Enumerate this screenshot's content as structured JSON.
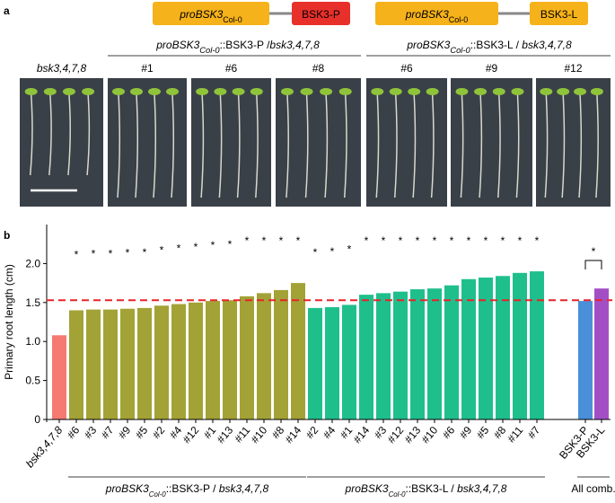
{
  "panel_a": {
    "label": "a",
    "constructs": [
      {
        "promoter": "proBSK3",
        "promoter_sub": "Col-0",
        "gene": "BSK3-P"
      },
      {
        "promoter": "proBSK3",
        "promoter_sub": "Col-0",
        "gene": "BSK3-L"
      }
    ],
    "line_groups": [
      {
        "parts": [
          "proBSK3",
          "Col-0",
          "::BSK3-P /",
          "bsk3,4,7,8"
        ]
      },
      {
        "parts": [
          "proBSK3",
          "Col-0",
          "::BSK3-L / ",
          "bsk3,4,7,8"
        ]
      }
    ],
    "photos": [
      "bsk3,4,7,8",
      "#1",
      "#6",
      "#8",
      "#6",
      "#9",
      "#12"
    ]
  },
  "chart_data": {
    "type": "bar",
    "panel_label": "b",
    "ylabel": "Primary root length (cm)",
    "categories": [
      "bsk3,4,7,8",
      "#6",
      "#3",
      "#7",
      "#9",
      "#5",
      "#2",
      "#4",
      "#12",
      "#1",
      "#13",
      "#11",
      "#10",
      "#8",
      "#14",
      "#2",
      "#4",
      "#1",
      "#14",
      "#3",
      "#12",
      "#13",
      "#10",
      "#6",
      "#9",
      "#5",
      "#8",
      "#11",
      "#7",
      "BSK3-P",
      "BSK3-L"
    ],
    "values": [
      1.08,
      1.4,
      1.41,
      1.41,
      1.42,
      1.43,
      1.46,
      1.48,
      1.5,
      1.52,
      1.53,
      1.58,
      1.62,
      1.66,
      1.75,
      1.43,
      1.44,
      1.47,
      1.6,
      1.62,
      1.64,
      1.67,
      1.68,
      1.72,
      1.8,
      1.82,
      1.84,
      1.88,
      1.9,
      1.52,
      1.68
    ],
    "colors": [
      "#f47a72",
      "#a3a236",
      "#a3a236",
      "#a3a236",
      "#a3a236",
      "#a3a236",
      "#a3a236",
      "#a3a236",
      "#a3a236",
      "#a3a236",
      "#a3a236",
      "#a3a236",
      "#a3a236",
      "#a3a236",
      "#a3a236",
      "#1fbf8c",
      "#1fbf8c",
      "#1fbf8c",
      "#1fbf8c",
      "#1fbf8c",
      "#1fbf8c",
      "#1fbf8c",
      "#1fbf8c",
      "#1fbf8c",
      "#1fbf8c",
      "#1fbf8c",
      "#1fbf8c",
      "#1fbf8c",
      "#1fbf8c",
      "#4a8fd8",
      "#a24fc6"
    ],
    "significance_marks": [
      null,
      "*",
      "*",
      "*",
      "*",
      "*",
      "*",
      "*",
      "*",
      "*",
      "*",
      "*",
      "*",
      "*",
      "*",
      "*",
      "*",
      "*",
      "*",
      "*",
      "*",
      "*",
      "*",
      "*",
      "*",
      "*",
      "*",
      "*",
      "*",
      null,
      null
    ],
    "comparison_mark": "*",
    "reference_line": 1.53,
    "groups": [
      {
        "parts": [
          "proBSK3",
          "Col-0",
          "::BSK3-P / ",
          "bsk3,4,7,8"
        ]
      },
      {
        "parts": [
          "proBSK3",
          "Col-0",
          "::BSK3-L / ",
          "bsk3,4,7,8"
        ]
      },
      {
        "parts": [
          "All comb."
        ]
      }
    ],
    "ylim": [
      0,
      2.5
    ],
    "yticks": [
      0,
      0.5,
      {
        "value": 1,
        "label": "1.0"
      },
      1.5,
      {
        "value": 2,
        "label": "2.0"
      }
    ]
  }
}
